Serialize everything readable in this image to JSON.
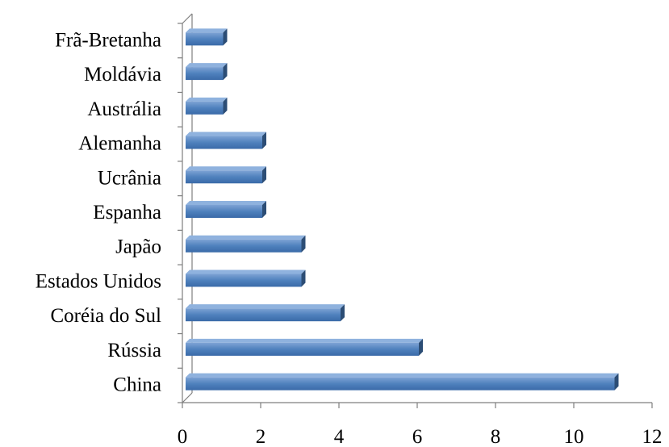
{
  "chart_data": {
    "type": "bar",
    "orientation": "horizontal",
    "style": "3d",
    "title": "",
    "xlabel": "",
    "ylabel": "",
    "categories": [
      "China",
      "Rússia",
      "Coréia do Sul",
      "Estados Unidos",
      "Japão",
      "Espanha",
      "Ucrânia",
      "Alemanha",
      "Austrália",
      "Moldávia",
      "Frã-Bretanha"
    ],
    "values": [
      11,
      6,
      4,
      3,
      3,
      2,
      2,
      2,
      1,
      1,
      1
    ],
    "xlim": [
      0,
      12
    ],
    "x_ticks": [
      "0",
      "2",
      "4",
      "6",
      "8",
      "10",
      "12"
    ],
    "grid": false,
    "legend": "none",
    "colors": {
      "bar_front": "#4f81bd",
      "bar_top": "#8fb2de",
      "bar_side": "#2c4d75"
    }
  }
}
